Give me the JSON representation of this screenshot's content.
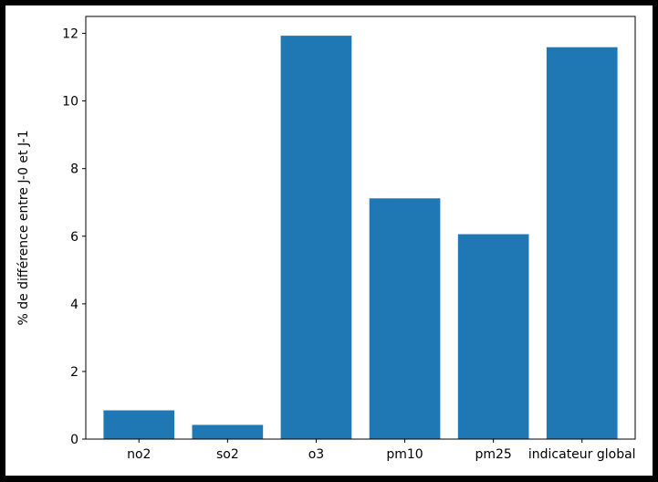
{
  "chart_data": {
    "type": "bar",
    "categories": [
      "no2",
      "so2",
      "o3",
      "pm10",
      "pm25",
      "indicateur global"
    ],
    "values": [
      0.85,
      0.42,
      11.93,
      7.12,
      6.06,
      11.59
    ],
    "title": "",
    "xlabel": "",
    "ylabel": "% de différence entre J-0 et J-1",
    "ylim": [
      0,
      12.5
    ],
    "yticks": [
      0,
      2,
      4,
      6,
      8,
      10,
      12
    ],
    "grid": false,
    "bar_color": "#1f77b4",
    "background_color": "#ffffff",
    "frame_color": "#000000"
  }
}
